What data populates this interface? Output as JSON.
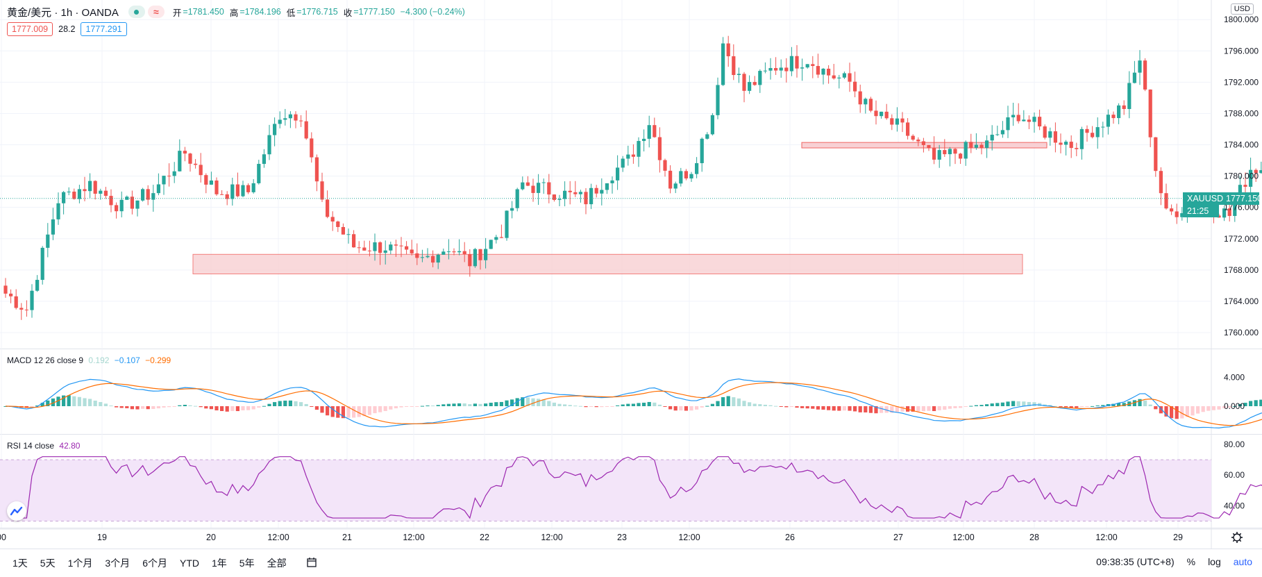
{
  "header": {
    "symbol": "黄金/美元 · 1h · OANDA",
    "open_label": "开",
    "open": "=1781.450",
    "high_label": "高",
    "high": "=1784.196",
    "low_label": "低",
    "low": "=1776.715",
    "close_label": "收",
    "close": "=1777.150",
    "change": "−4.300 (−0.24%)",
    "bid": "1777.009",
    "spread": "28.2",
    "ask": "1777.291"
  },
  "currency": "USD",
  "last_price": {
    "symbol": "XAUUSD",
    "value": "1777.150",
    "countdown": "21:25"
  },
  "colors": {
    "up": "#26a69a",
    "down": "#ef5350",
    "zone_fill": "#f8cdd0",
    "zone_stroke": "#ef5350",
    "macd": "#2196f3",
    "signal": "#ff6d00",
    "rsi": "#9c27b0",
    "rsi_band": "#f3e5f9"
  },
  "chart_data": [
    {
      "type": "candlestick",
      "title": "",
      "ylim": [
        1758,
        1800
      ],
      "y_ticks": [
        "1760.000",
        "1764.000",
        "1768.000",
        "1772.000",
        "1776.000",
        "1780.000",
        "1784.000",
        "1788.000",
        "1792.000",
        "1796.000",
        "1800.000"
      ],
      "x_tick_labels": [
        "00",
        "19",
        "20",
        "12:00",
        "21",
        "12:00",
        "22",
        "12:00",
        "23",
        "12:00",
        "26",
        "27",
        "12:00",
        "28",
        "12:00",
        "29"
      ],
      "keypoints": [
        {
          "t": 0,
          "p": 1765
        },
        {
          "t": 4,
          "p": 1763
        },
        {
          "t": 10,
          "p": 1777
        },
        {
          "t": 16,
          "p": 1779
        },
        {
          "t": 22,
          "p": 1776
        },
        {
          "t": 28,
          "p": 1778
        },
        {
          "t": 34,
          "p": 1783
        },
        {
          "t": 40,
          "p": 1778
        },
        {
          "t": 46,
          "p": 1778
        },
        {
          "t": 52,
          "p": 1788
        },
        {
          "t": 56,
          "p": 1788
        },
        {
          "t": 60,
          "p": 1776
        },
        {
          "t": 66,
          "p": 1771
        },
        {
          "t": 72,
          "p": 1771
        },
        {
          "t": 78,
          "p": 1769
        },
        {
          "t": 84,
          "p": 1771
        },
        {
          "t": 88,
          "p": 1769
        },
        {
          "t": 94,
          "p": 1773
        },
        {
          "t": 98,
          "p": 1779
        },
        {
          "t": 104,
          "p": 1778
        },
        {
          "t": 110,
          "p": 1777
        },
        {
          "t": 114,
          "p": 1780
        },
        {
          "t": 118,
          "p": 1782
        },
        {
          "t": 122,
          "p": 1787
        },
        {
          "t": 126,
          "p": 1779
        },
        {
          "t": 130,
          "p": 1781
        },
        {
          "t": 134,
          "p": 1788
        },
        {
          "t": 136,
          "p": 1797
        },
        {
          "t": 140,
          "p": 1791
        },
        {
          "t": 146,
          "p": 1794
        },
        {
          "t": 152,
          "p": 1795
        },
        {
          "t": 156,
          "p": 1793
        },
        {
          "t": 160,
          "p": 1792
        },
        {
          "t": 164,
          "p": 1788
        },
        {
          "t": 170,
          "p": 1786
        },
        {
          "t": 176,
          "p": 1782
        },
        {
          "t": 180,
          "p": 1783
        },
        {
          "t": 186,
          "p": 1784
        },
        {
          "t": 192,
          "p": 1788
        },
        {
          "t": 196,
          "p": 1786
        },
        {
          "t": 202,
          "p": 1784
        },
        {
          "t": 208,
          "p": 1787
        },
        {
          "t": 212,
          "p": 1789
        },
        {
          "t": 215,
          "p": 1795
        },
        {
          "t": 218,
          "p": 1781
        },
        {
          "t": 220,
          "p": 1775
        },
        {
          "t": 226,
          "p": 1777
        },
        {
          "t": 232,
          "p": 1775
        },
        {
          "t": 236,
          "p": 1781
        },
        {
          "t": 242,
          "p": 1781
        },
        {
          "t": 246,
          "p": 1777
        },
        {
          "t": 250,
          "p": 1781
        },
        {
          "t": 254,
          "p": 1778
        },
        {
          "t": 258,
          "p": 1776
        },
        {
          "t": 264,
          "p": 1780
        },
        {
          "t": 270,
          "p": 1781.4
        },
        {
          "t": 274,
          "p": 1781.4
        },
        {
          "t": 276,
          "p": 1777.2
        }
      ],
      "resistance_zone": [
        1783.6,
        1784.3
      ],
      "support_zone": [
        1767.5,
        1770
      ]
    },
    {
      "type": "macd",
      "label": "MACD 12 26 close 9",
      "histogram_value": "0.192",
      "macd_value": "−0.107",
      "signal_value": "−0.299",
      "y_ticks": [
        "4.000",
        "0.000"
      ],
      "ylim": [
        -3,
        6.5
      ]
    },
    {
      "type": "rsi",
      "label": "RSI 14 close",
      "value": "42.80",
      "y_ticks": [
        "80.00",
        "60.00",
        "40.00"
      ],
      "band": [
        30,
        70
      ],
      "ylim": [
        28,
        82
      ]
    }
  ],
  "toolbar": {
    "ranges": [
      "1天",
      "5天",
      "1个月",
      "3个月",
      "6个月",
      "YTD",
      "1年",
      "5年",
      "全部"
    ],
    "time": "09:38:35 (UTC+8)",
    "percent": "%",
    "log": "log",
    "auto": "auto"
  }
}
